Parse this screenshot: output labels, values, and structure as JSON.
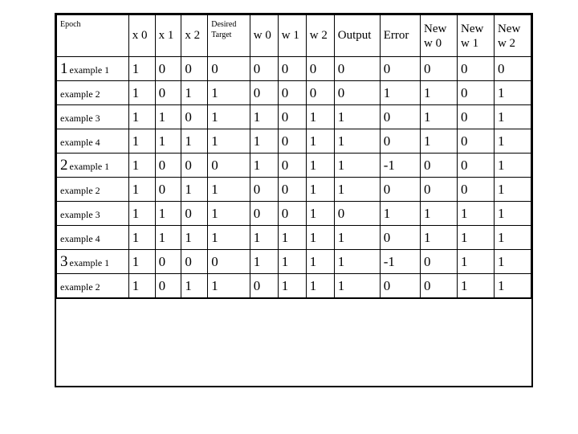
{
  "table": {
    "headers": {
      "epoch": "Epoch",
      "x0": "x 0",
      "x1": "x 1",
      "x2": "x 2",
      "desired_target_line1": "Desired",
      "desired_target_line2": "Target",
      "w0": "w 0",
      "w1": "w 1",
      "w2": "w 2",
      "output": "Output",
      "error": "Error",
      "new_w0_line1": "New",
      "new_w0_line2": "w 0",
      "new_w1_line1": "New",
      "new_w1_line2": "w 1",
      "new_w2_line1": "New",
      "new_w2_line2": "w 2"
    },
    "rows": [
      {
        "epoch_num": "1",
        "example": "example 1",
        "x0": "1",
        "x1": "0",
        "x2": "0",
        "dt": "0",
        "w0": "0",
        "w1": "0",
        "w2": "0",
        "out": "0",
        "err": "0",
        "nw0": "0",
        "nw1": "0",
        "nw2": "0"
      },
      {
        "epoch_num": "",
        "example": "example 2",
        "x0": "1",
        "x1": "0",
        "x2": "1",
        "dt": "1",
        "w0": "0",
        "w1": "0",
        "w2": "0",
        "out": "0",
        "err": "1",
        "nw0": "1",
        "nw1": "0",
        "nw2": "1"
      },
      {
        "epoch_num": "",
        "example": "example 3",
        "x0": "1",
        "x1": "1",
        "x2": "0",
        "dt": "1",
        "w0": "1",
        "w1": "0",
        "w2": "1",
        "out": "1",
        "err": "0",
        "nw0": "1",
        "nw1": "0",
        "nw2": "1"
      },
      {
        "epoch_num": "",
        "example": "example 4",
        "x0": "1",
        "x1": "1",
        "x2": "1",
        "dt": "1",
        "w0": "1",
        "w1": "0",
        "w2": "1",
        "out": "1",
        "err": "0",
        "nw0": "1",
        "nw1": "0",
        "nw2": "1"
      },
      {
        "epoch_num": "2",
        "example": "example 1",
        "x0": "1",
        "x1": "0",
        "x2": "0",
        "dt": "0",
        "w0": "1",
        "w1": "0",
        "w2": "1",
        "out": "1",
        "err": "-1",
        "nw0": "0",
        "nw1": "0",
        "nw2": "1"
      },
      {
        "epoch_num": "",
        "example": "example 2",
        "x0": "1",
        "x1": "0",
        "x2": "1",
        "dt": "1",
        "w0": "0",
        "w1": "0",
        "w2": "1",
        "out": "1",
        "err": "0",
        "nw0": "0",
        "nw1": "0",
        "nw2": "1"
      },
      {
        "epoch_num": "",
        "example": "example 3",
        "x0": "1",
        "x1": "1",
        "x2": "0",
        "dt": "1",
        "w0": "0",
        "w1": "0",
        "w2": "1",
        "out": "0",
        "err": "1",
        "nw0": "1",
        "nw1": "1",
        "nw2": "1"
      },
      {
        "epoch_num": "",
        "example": "example 4",
        "x0": "1",
        "x1": "1",
        "x2": "1",
        "dt": "1",
        "w0": "1",
        "w1": "1",
        "w2": "1",
        "out": "1",
        "err": "0",
        "nw0": "1",
        "nw1": "1",
        "nw2": "1"
      },
      {
        "epoch_num": "3",
        "example": "example 1",
        "x0": "1",
        "x1": "0",
        "x2": "0",
        "dt": "0",
        "w0": "1",
        "w1": "1",
        "w2": "1",
        "out": "1",
        "err": "-1",
        "nw0": "0",
        "nw1": "1",
        "nw2": "1"
      },
      {
        "epoch_num": "",
        "example": "example 2",
        "x0": "1",
        "x1": "0",
        "x2": "1",
        "dt": "1",
        "w0": "0",
        "w1": "1",
        "w2": "1",
        "out": "1",
        "err": "0",
        "nw0": "0",
        "nw1": "1",
        "nw2": "1"
      }
    ],
    "colors": {
      "background": "#ffffff",
      "border": "#000000",
      "text": "#000000"
    },
    "fonts": {
      "family": "Times New Roman",
      "header_fontsize_pt": 12,
      "small_header_fontsize_pt": 8,
      "cell_fontsize_pt": 13,
      "epoch_num_fontsize_pt": 15,
      "example_label_fontsize_pt": 9
    }
  }
}
